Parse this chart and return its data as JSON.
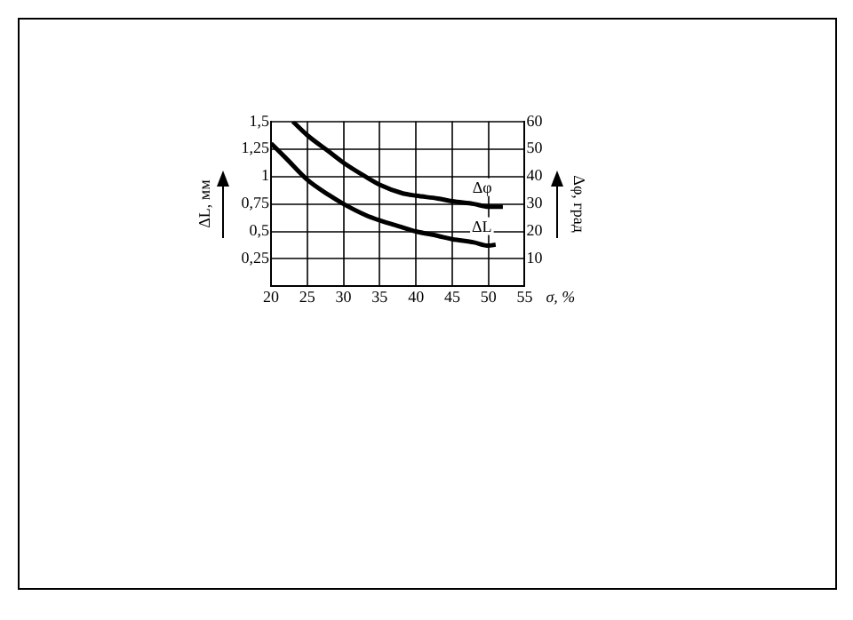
{
  "chart_data": {
    "type": "line",
    "xlabel": "σ, %",
    "ylabel": "ΔL, мм",
    "y2label": "Δφ, град",
    "series": [
      {
        "color": "#000000",
        "x": [
          20,
          22,
          25,
          28,
          30,
          33,
          35,
          38,
          40,
          43,
          45,
          48,
          50,
          51
        ],
        "values": [
          1.3,
          1.17,
          0.97,
          0.83,
          0.75,
          0.65,
          0.6,
          0.54,
          0.5,
          0.46,
          0.43,
          0.4,
          0.37,
          0.38
        ]
      },
      {
        "color": "#000000",
        "axis": "y2",
        "x": [
          23,
          25,
          28,
          30,
          33,
          35,
          38,
          40,
          43,
          45,
          48,
          50,
          52
        ],
        "values": [
          60,
          55,
          49,
          45,
          40,
          37,
          34,
          33,
          32,
          31,
          30,
          29,
          29
        ]
      }
    ],
    "annotations": [
      {
        "text": "Δφ",
        "x": 50,
        "y": 0.725
      },
      {
        "text": "ΔL",
        "x": 50,
        "y": 0.37
      }
    ],
    "xlim": [
      20,
      55
    ],
    "xticks": [
      20,
      25,
      30,
      35,
      40,
      45,
      50,
      55
    ],
    "ylim": [
      0,
      1.5
    ],
    "yticks": [
      {
        "value": 0.25,
        "label": "0,25"
      },
      {
        "value": 0.5,
        "label": "0,5"
      },
      {
        "value": 0.75,
        "label": "0,75"
      },
      1,
      {
        "value": 1.25,
        "label": "1,25"
      },
      {
        "value": 1.5,
        "label": "1,5"
      }
    ],
    "y2lim": [
      0,
      60
    ],
    "y2ticks": [
      10,
      20,
      30,
      40,
      50,
      60
    ],
    "grid": true,
    "legend": false,
    "marker": "none",
    "line_style": "solid"
  }
}
